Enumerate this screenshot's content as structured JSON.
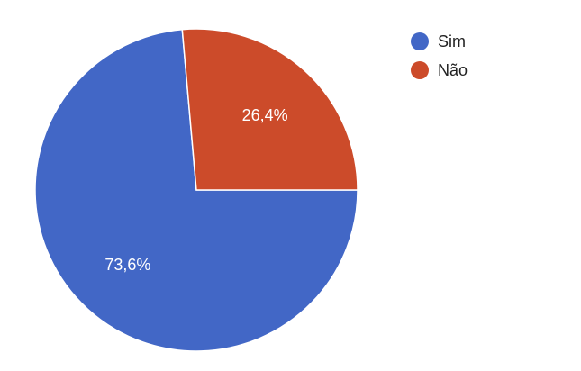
{
  "chart_data": {
    "type": "pie",
    "slices": [
      {
        "name": "Sim",
        "value": 73.6,
        "label": "73,6%",
        "color": "#4267c6"
      },
      {
        "name": "Não",
        "value": 26.4,
        "label": "26,4%",
        "color": "#cc4b2a"
      }
    ],
    "legend_position": "top-right"
  }
}
